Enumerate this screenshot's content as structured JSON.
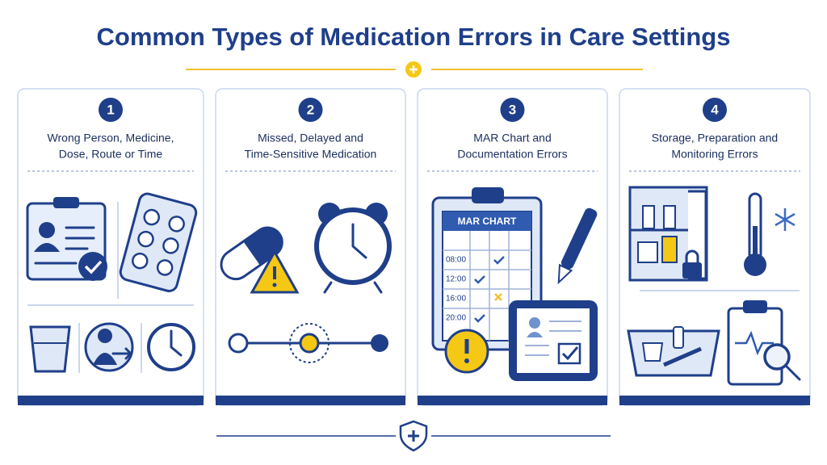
{
  "header": {
    "title": "Common Types of Medication Errors in Care Settings"
  },
  "cards": [
    {
      "number": "1",
      "title_lines": [
        "Wrong Person, Medicine,",
        "Dose, Route or Time"
      ]
    },
    {
      "number": "2",
      "title_lines": [
        "Missed, Delayed and",
        "Time-Sensitive Medication"
      ]
    },
    {
      "number": "3",
      "title_lines": [
        "MAR Chart and",
        "Documentation Errors"
      ]
    },
    {
      "number": "4",
      "title_lines": [
        "Storage, Preparation and",
        "Monitoring Errors"
      ]
    }
  ],
  "mar_chart": {
    "label": "MAR CHART",
    "times": [
      "08:00",
      "12:00",
      "16:00",
      "20:00"
    ]
  }
}
